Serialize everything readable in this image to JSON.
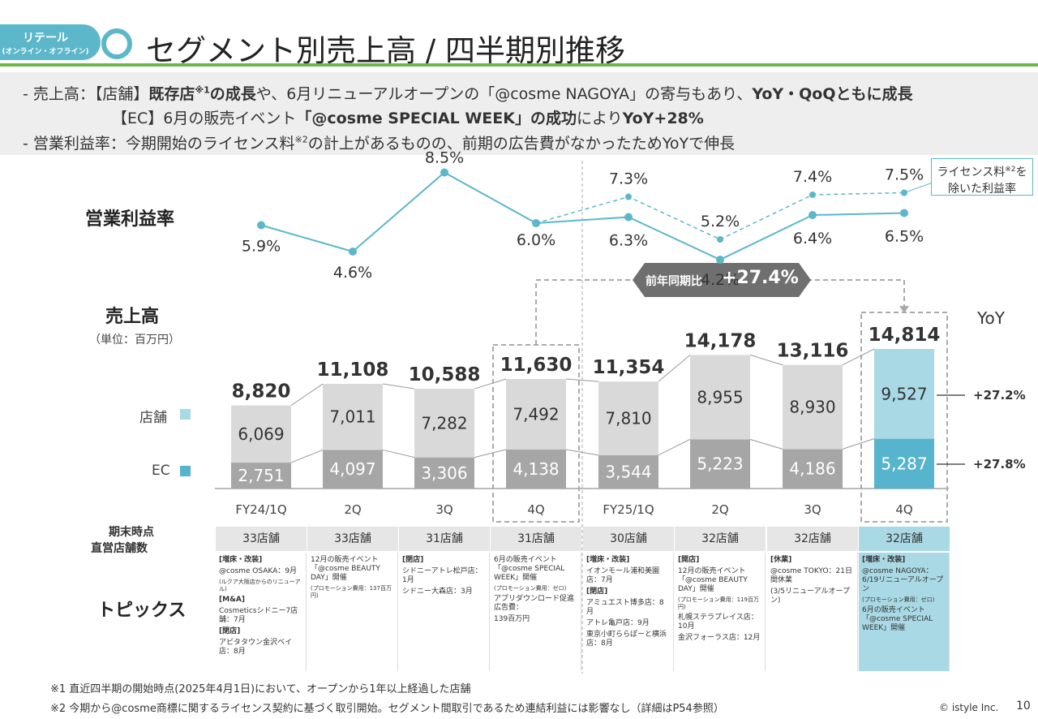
{
  "header": {
    "tag_line1": "リテール",
    "tag_line2": "(オンライン・オフライン)",
    "title": "セグメント別売上高 / 四半期別推移"
  },
  "summary": {
    "line1_a": "- 売上高：【店舗】",
    "line1_b": "既存店",
    "line1_sup": "※1",
    "line1_c": "の成長",
    "line1_d": "や、6月リニューアルオープンの「@cosme NAGOYA」の寄与もあり、",
    "line1_e": "YoY・QoQともに成長",
    "line2_a": "【EC】6月の販売イベント",
    "line2_b": "「@cosme SPECIAL WEEK」の成功",
    "line2_c": "により",
    "line2_d": "YoY+28%",
    "line3_a": "- 営業利益率：今期開始のライセンス料",
    "line3_sup": "※2",
    "line3_b": "の計上があるものの、前期の広告費がなかったためYoYで伸長"
  },
  "labels": {
    "op_margin": "営業利益率",
    "sales": "売上高",
    "unit": "（単位：百万円）",
    "store_legend": "店舗",
    "ec_legend": "EC",
    "yoy_header": "YoY",
    "store_yoy": "+27.2%",
    "ec_yoy": "+27.8%",
    "yoy_badge_label": "前年同期比",
    "yoy_badge_value": "+27.4%",
    "license_note_a": "ライセンス料",
    "license_note_sup": "※2",
    "license_note_b": "を",
    "license_note_c": "除いた利益率",
    "store_count_label1": "期末時点",
    "store_count_label2": "直営店舗数",
    "topics_label": "トピックス"
  },
  "chart_data": {
    "type": "bar",
    "categories": [
      "FY24/1Q",
      "2Q",
      "3Q",
      "4Q",
      "FY25/1Q",
      "2Q",
      "3Q",
      "4Q"
    ],
    "series": [
      {
        "name": "EC",
        "values": [
          2751,
          4097,
          3306,
          4138,
          3544,
          5223,
          4186,
          5287
        ]
      },
      {
        "name": "店舗",
        "values": [
          6069,
          7011,
          7282,
          7492,
          7810,
          8955,
          8930,
          9527
        ]
      }
    ],
    "totals": [
      8820,
      11108,
      10588,
      11630,
      11354,
      14178,
      13116,
      14814
    ],
    "value_labels": {
      "ec": [
        "2,751",
        "4,097",
        "3,306",
        "4,138",
        "3,544",
        "5,223",
        "4,186",
        "5,287"
      ],
      "store": [
        "6,069",
        "7,011",
        "7,282",
        "7,492",
        "7,810",
        "8,955",
        "8,930",
        "9,527"
      ],
      "totals": [
        "8,820",
        "11,108",
        "10,588",
        "11,630",
        "11,354",
        "14,178",
        "13,116",
        "14,814"
      ]
    },
    "op_margin": {
      "values": [
        5.9,
        4.6,
        8.5,
        6.0,
        6.3,
        4.2,
        6.4,
        6.5
      ],
      "labels": [
        "5.9%",
        "4.6%",
        "8.5%",
        "6.0%",
        "6.3%",
        "4.2%",
        "6.4%",
        "6.5%"
      ],
      "excl_license_values": [
        null,
        null,
        null,
        6.0,
        7.3,
        5.2,
        7.4,
        7.5
      ],
      "excl_license_labels": [
        "",
        "",
        "",
        "",
        "7.3%",
        "5.2%",
        "7.4%",
        "7.5%"
      ]
    },
    "colors": {
      "store_past": "#d9d9d9",
      "ec_past": "#a6a6a6",
      "store_current": "#a9d9e5",
      "ec_current": "#56b4cd",
      "line": "#5bb7c9"
    }
  },
  "store_counts": [
    "33店舗",
    "33店舗",
    "31店舗",
    "31店舗",
    "30店舗",
    "32店舗",
    "32店舗",
    "32店舗"
  ],
  "topics": [
    {
      "h1": "[増床・改装]",
      "t1": "@cosme OSAKA：9月",
      "s1": "(ルクア大阪店からのリニューアル)",
      "h2": "[M&A]",
      "t2": "Cosmeticsシドニー7店舗：7月",
      "h3": "[閉店]",
      "t3": "アピタタウン金沢ベイ店：8月"
    },
    {
      "t1": "12月の販売イベント「@cosme BEAUTY DAY」開催",
      "s1": "(プロモーション費用：137百万円)"
    },
    {
      "h1": "[閉店]",
      "t1": "シドニーアトレ松戸店：1月",
      "t2": "シドニー大森店：3月"
    },
    {
      "t1": "6月の販売イベント「@cosme SPECIAL WEEK」開催",
      "s1": "(プロモーション費用：ゼロ)",
      "t2": "アプリダウンロード促進広告費：",
      "t3": "139百万円"
    },
    {
      "h1": "[増床・改装]",
      "t1": "イオンモール浦和美園店：7月",
      "t2": "アミュエスト博多店：8月",
      "t3": "アトレ亀戸店：9月",
      "h2": "[閉店]",
      "t4": "東京小町ららぽーと横浜店：8月"
    },
    {
      "t1": "12月の販売イベント「@cosme BEAUTY DAY」開催",
      "s1": "(プロモーション費用：119百万円)",
      "h1": "[開店]",
      "t2": "札幌ステラプレイス店：10月",
      "t3": "金沢フォーラス店：12月"
    },
    {
      "h1": "[休業]",
      "t1": "@cosme TOKYO：21日間休業",
      "t2": "(3/5リニューアルオープン)"
    },
    {
      "h1": "[増床・改装]",
      "t1": "@cosme NAGOYA：6/19リニューアルオープン",
      "t2": "6月の販売イベント「@cosme SPECIAL WEEK」開催",
      "s1": "(プロモーション費用：ゼロ)"
    }
  ],
  "footnotes": {
    "f1": "※1 直近四半期の開始時点(2025年4月1日)において、オープンから1年以上経過した店舗",
    "f2": "※2 今期から@cosme商標に関するライセンス契約に基づく取引開始。セグメント間取引であるため連結利益には影響なし（詳細はP54参照）"
  },
  "copyright": "© istyle Inc.",
  "page_number": "10"
}
